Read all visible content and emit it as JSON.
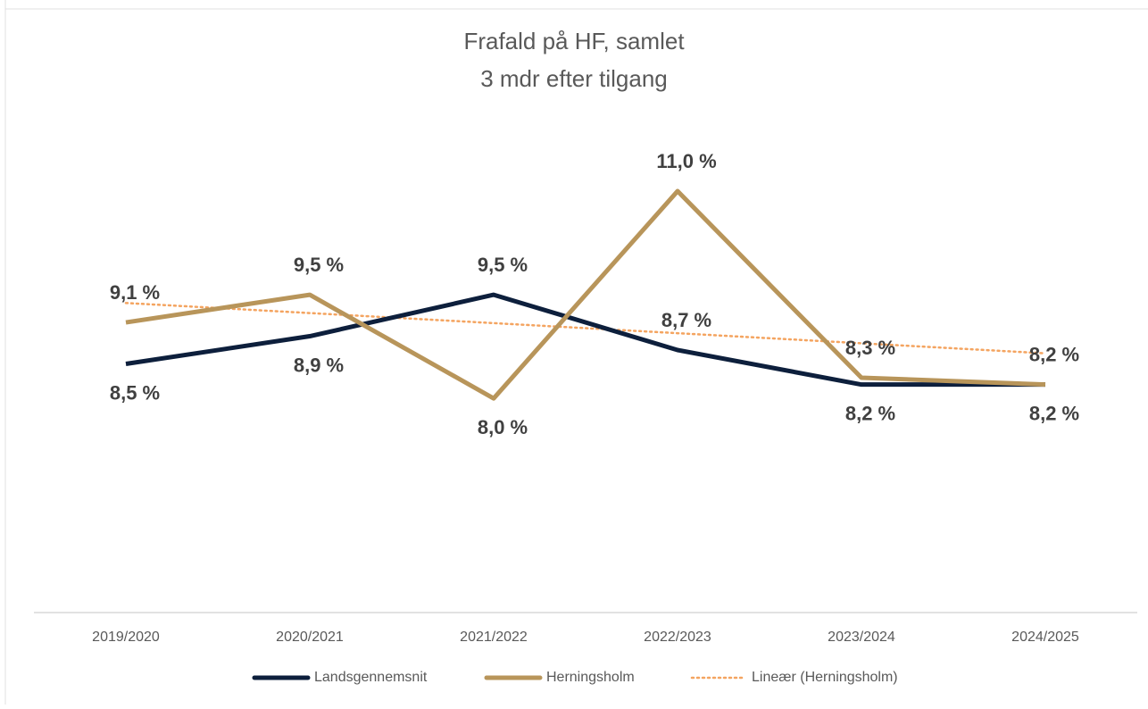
{
  "chart_data": {
    "type": "line",
    "title": "Frafald på HF, samlet",
    "subtitle": "3 mdr efter tilgang",
    "categories": [
      "2019/2020",
      "2020/2021",
      "2021/2022",
      "2022/2023",
      "2023/2024",
      "2024/2025"
    ],
    "ylim": [
      4.9,
      12.5
    ],
    "series": [
      {
        "name": "Landsgennemsnit",
        "color": "#0d1f3c",
        "values": [
          8.5,
          8.9,
          9.5,
          8.7,
          8.2,
          8.2
        ],
        "value_labels": [
          "8,5 %",
          "8,9 %",
          "9,5 %",
          "8,7 %",
          "8,2 %",
          "8,2 %"
        ],
        "label_positions": [
          "below",
          "below",
          "above",
          "above",
          "below",
          "below"
        ]
      },
      {
        "name": "Herningsholm",
        "color": "#b8955a",
        "values": [
          9.1,
          9.5,
          8.0,
          11.0,
          8.3,
          8.2
        ],
        "value_labels": [
          "9,1 %",
          "9,5 %",
          "8,0 %",
          "11,0 %",
          "8,3 %",
          "8,2 %"
        ],
        "label_positions": [
          "above",
          "above",
          "below",
          "above",
          "above",
          "above"
        ]
      }
    ],
    "trendline": {
      "name": "Lineær (Herningsholm)",
      "type": "linear",
      "series": 1,
      "color": "#f4a460",
      "dotted": true
    },
    "legend": "bottom"
  }
}
